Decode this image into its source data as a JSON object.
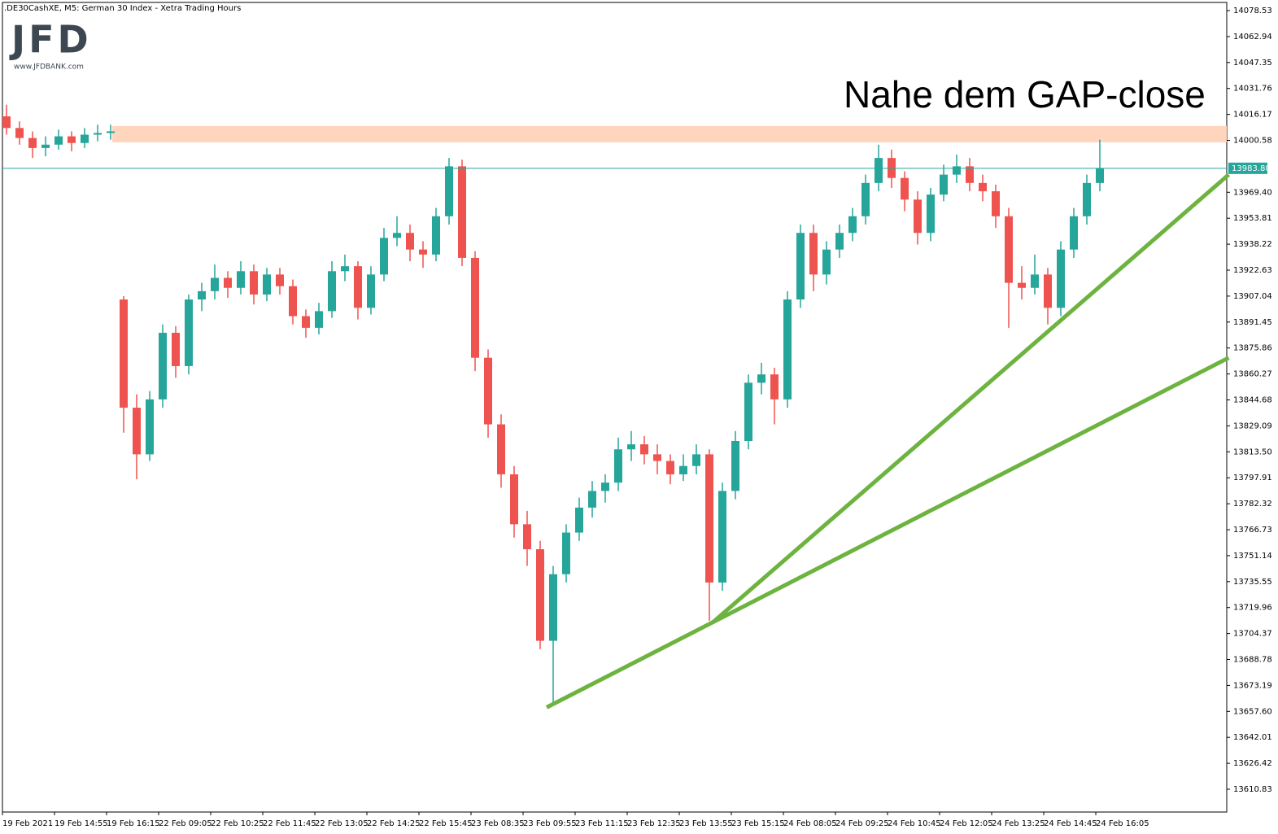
{
  "logo": {
    "text": "JFD",
    "url": "www.JFDBANK.com"
  },
  "chart_data": {
    "type": "candlestick",
    "title": ".DE30CashXE, M5:  German 30 Index  - Xetra Trading Hours",
    "annotation": "Nahe dem GAP-close",
    "categories": [
      "19 Feb 2021",
      null,
      null,
      null,
      "19 Feb 14:55",
      null,
      null,
      null,
      "19 Feb 16:15",
      null,
      null,
      null,
      "22 Feb 09:05",
      null,
      null,
      null,
      "22 Feb 10:25",
      null,
      null,
      null,
      "22 Feb 11:45",
      null,
      null,
      null,
      "22 Feb 13:05",
      null,
      null,
      null,
      "22 Feb 14:25",
      null,
      null,
      null,
      "22 Feb 15:45",
      null,
      null,
      null,
      "23 Feb 08:35",
      null,
      null,
      null,
      "23 Feb 09:55",
      null,
      null,
      null,
      "23 Feb 11:15",
      null,
      null,
      null,
      "23 Feb 12:35",
      null,
      null,
      null,
      "23 Feb 13:55",
      null,
      null,
      null,
      "23 Feb 15:15",
      null,
      null,
      null,
      "24 Feb 08:05",
      null,
      null,
      null,
      "24 Feb 09:25",
      null,
      null,
      null,
      "24 Feb 10:45",
      null,
      null,
      null,
      "24 Feb 12:05",
      null,
      null,
      null,
      "24 Feb 13:25",
      null,
      null,
      null,
      "24 Feb 14:45",
      null,
      null,
      null,
      "24 Feb 16:05"
    ],
    "open": [
      14015,
      14008,
      14002,
      13996,
      13998,
      14003,
      13999,
      14004,
      14005,
      13905,
      13840,
      13812,
      13845,
      13885,
      13865,
      13905,
      13910,
      13918,
      13912,
      13922,
      13908,
      13920,
      13913,
      13895,
      13888,
      13898,
      13922,
      13925,
      13900,
      13920,
      13942,
      13945,
      13935,
      13932,
      13955,
      13985,
      13930,
      13870,
      13830,
      13800,
      13770,
      13755,
      13700,
      13740,
      13765,
      13780,
      13790,
      13795,
      13815,
      13818,
      13812,
      13808,
      13800,
      13805,
      13812,
      13735,
      13790,
      13820,
      13855,
      13860,
      13845,
      13905,
      13945,
      13920,
      13935,
      13945,
      13955,
      13975,
      13990,
      13978,
      13965,
      13945,
      13968,
      13980,
      13985,
      13975,
      13970,
      13955,
      13915,
      13912,
      13920,
      13900,
      13935,
      13955,
      13975
    ],
    "high": [
      14022,
      14012,
      14006,
      14003,
      14007,
      14006,
      14008,
      14010,
      14010,
      13907,
      13848,
      13850,
      13890,
      13889,
      13908,
      13915,
      13926,
      13922,
      13928,
      13926,
      13924,
      13924,
      13917,
      13899,
      13903,
      13928,
      13932,
      13928,
      13925,
      13948,
      13955,
      13950,
      13940,
      13960,
      13990,
      13989,
      13934,
      13875,
      13836,
      13805,
      13778,
      13760,
      13745,
      13770,
      13786,
      13796,
      13800,
      13822,
      13826,
      13823,
      13818,
      13812,
      13812,
      13818,
      13815,
      13795,
      13826,
      13860,
      13867,
      13864,
      13910,
      13950,
      13950,
      13940,
      13950,
      13960,
      13980,
      13998,
      13995,
      13982,
      13970,
      13972,
      13986,
      13992,
      13990,
      13980,
      13974,
      13960,
      13925,
      13932,
      13924,
      13940,
      13960,
      13980,
      14001
    ],
    "low": [
      14004,
      13998,
      13990,
      13991,
      13995,
      13994,
      13996,
      14000,
      14001,
      13825,
      13797,
      13808,
      13840,
      13858,
      13860,
      13898,
      13905,
      13906,
      13908,
      13902,
      13904,
      13908,
      13890,
      13882,
      13884,
      13894,
      13916,
      13893,
      13896,
      13916,
      13937,
      13928,
      13924,
      13928,
      13950,
      13925,
      13862,
      13822,
      13792,
      13762,
      13745,
      13695,
      13663,
      13735,
      13760,
      13774,
      13783,
      13790,
      13808,
      13806,
      13800,
      13794,
      13796,
      13800,
      13712,
      13730,
      13785,
      13815,
      13848,
      13830,
      13840,
      13900,
      13910,
      13914,
      13930,
      13940,
      13950,
      13970,
      13972,
      13958,
      13938,
      13940,
      13964,
      13975,
      13970,
      13964,
      13948,
      13888,
      13905,
      13908,
      13890,
      13895,
      13930,
      13950,
      13970
    ],
    "close": [
      14008,
      14002,
      13996,
      13998,
      14003,
      13999,
      14004,
      14005,
      14006,
      13840,
      13812,
      13845,
      13885,
      13865,
      13905,
      13910,
      13918,
      13912,
      13922,
      13908,
      13920,
      13913,
      13895,
      13888,
      13898,
      13922,
      13925,
      13900,
      13920,
      13942,
      13945,
      13935,
      13932,
      13955,
      13985,
      13930,
      13870,
      13830,
      13800,
      13770,
      13755,
      13700,
      13740,
      13765,
      13780,
      13790,
      13795,
      13815,
      13818,
      13812,
      13808,
      13800,
      13805,
      13812,
      13735,
      13790,
      13820,
      13855,
      13860,
      13845,
      13905,
      13945,
      13920,
      13935,
      13945,
      13955,
      13975,
      13990,
      13978,
      13965,
      13945,
      13968,
      13980,
      13985,
      13975,
      13970,
      13955,
      13915,
      13912,
      13920,
      13900,
      13935,
      13955,
      13975,
      13983.8
    ],
    "up_color": "#26a69a",
    "down_color": "#ef5350",
    "ylim": [
      13597.15,
      14083.42
    ],
    "yticks": [
      14078.53,
      14062.94,
      14047.35,
      14031.76,
      14016.17,
      14000.58,
      {
        "value": 13969.4,
        "label": "13969.40"
      },
      13953.81,
      13938.22,
      13922.63,
      13907.04,
      13891.45,
      13875.86,
      13860.27,
      13844.68,
      13829.09,
      {
        "value": 13813.5,
        "label": "13813.50"
      },
      13797.91,
      13782.32,
      13766.73,
      13751.14,
      13735.55,
      13719.96,
      13704.37,
      13688.78,
      13673.19,
      {
        "value": 13657.6,
        "label": "13657.60"
      },
      13642.01,
      13626.42,
      13610.83
    ],
    "current_price": {
      "value": 13983.8,
      "label": "13983.80"
    },
    "price_line_color": "#26a69a",
    "zone": {
      "from": 13999.4,
      "to": 14009.2,
      "color": "#ffd5bd"
    },
    "trendlines": [
      {
        "color": "#6db33f",
        "points": [
          [
            41.5,
            13660
          ],
          [
            93.9,
            13870
          ]
        ]
      },
      {
        "color": "#6db33f",
        "points": [
          [
            54.25,
            13711
          ],
          [
            93.9,
            13980
          ]
        ]
      }
    ]
  }
}
